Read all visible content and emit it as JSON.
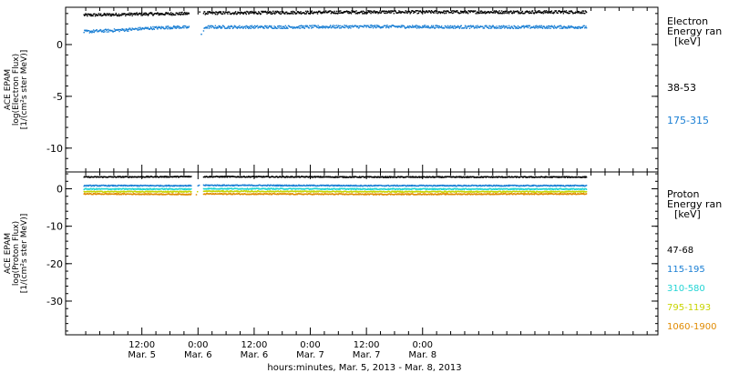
{
  "chart_data": [
    {
      "type": "scatter",
      "panel": "electron",
      "ylabel_lines": [
        "ACE EPAM",
        "log(Electron Flux)",
        "[1/(cm²s ster MeV)]"
      ],
      "legend_title_lines": [
        "Electron",
        "Energy ran",
        "[keV]"
      ],
      "legend_placement": "right",
      "ylim": [
        -12.3,
        3.6
      ],
      "yticks": [
        0,
        -5,
        -10
      ],
      "gap_hours": [
        70.0,
        73.0
      ],
      "series": [
        {
          "name": "38-53",
          "color": "#000000",
          "points": [
            [
              47.5,
              2.9
            ],
            [
              60,
              3.0
            ],
            [
              70,
              3.05
            ],
            [
              73.5,
              3.1
            ],
            [
              90,
              3.15
            ],
            [
              110,
              3.2
            ],
            [
              140,
              3.2
            ],
            [
              155,
              3.2
            ]
          ]
        },
        {
          "name": "175-315",
          "color": "#1a7fd4",
          "points": [
            [
              47.5,
              1.3
            ],
            [
              55,
              1.45
            ],
            [
              62,
              1.65
            ],
            [
              68,
              1.75
            ],
            [
              70.0,
              1.7
            ],
            [
              71.0,
              0.7
            ],
            [
              71.5,
              0.2
            ],
            [
              73.5,
              1.75
            ],
            [
              90,
              1.75
            ],
            [
              110,
              1.8
            ],
            [
              130,
              1.75
            ],
            [
              155,
              1.75
            ]
          ]
        }
      ]
    },
    {
      "type": "scatter",
      "panel": "proton",
      "ylabel_lines": [
        "ACE EPAM",
        "log(Proton Flux)",
        "[1/(cm²s ster MeV)]"
      ],
      "legend_title_lines": [
        "Proton",
        "Energy ran",
        "[keV]"
      ],
      "legend_placement": "right",
      "ylim": [
        -39,
        4.5
      ],
      "yticks": [
        0,
        -10,
        -20,
        -30
      ],
      "gap_hours": [
        70.5,
        73.0
      ],
      "series": [
        {
          "name": "47-68",
          "color": "#000000",
          "points": [
            [
              47.5,
              3.3
            ],
            [
              70,
              3.4
            ],
            [
              73.5,
              3.4
            ],
            [
              110,
              3.3
            ],
            [
              155,
              3.3
            ]
          ]
        },
        {
          "name": "115-195",
          "color": "#1a7fd4",
          "points": [
            [
              47.5,
              1.0
            ],
            [
              70,
              1.0
            ],
            [
              73.5,
              1.1
            ],
            [
              110,
              1.0
            ],
            [
              155,
              1.0
            ]
          ]
        },
        {
          "name": "310-580",
          "color": "#22d4d4",
          "points": [
            [
              47.5,
              0.1
            ],
            [
              70,
              0.1
            ],
            [
              73.5,
              0.2
            ],
            [
              110,
              0.1
            ],
            [
              155,
              0.1
            ]
          ]
        },
        {
          "name": "795-1193",
          "color": "#c8d400",
          "points": [
            [
              47.5,
              -0.6
            ],
            [
              70,
              -0.6
            ],
            [
              73.5,
              -0.5
            ],
            [
              110,
              -0.6
            ],
            [
              155,
              -0.6
            ]
          ]
        },
        {
          "name": "1060-1900",
          "color": "#e08a00",
          "points": [
            [
              47.5,
              -1.2
            ],
            [
              70,
              -1.3
            ],
            [
              73.5,
              -1.2
            ],
            [
              110,
              -1.3
            ],
            [
              155,
              -1.2
            ]
          ]
        }
      ]
    }
  ],
  "x_axis": {
    "xlim_hours": [
      43.7,
      170.3
    ],
    "title": "hours:minutes, Mar.  5, 2013 - Mar.  8, 2013",
    "ticks": [
      {
        "hours": 60,
        "time": "12:00",
        "date": "Mar. 5"
      },
      {
        "hours": 72,
        "time": "0:00",
        "date": "Mar. 6"
      },
      {
        "hours": 84,
        "time": "12:00",
        "date": "Mar. 6"
      },
      {
        "hours": 96,
        "time": "0:00",
        "date": "Mar. 7"
      },
      {
        "hours": 108,
        "time": "12:00",
        "date": "Mar. 7"
      },
      {
        "hours": 120,
        "time": "0:00",
        "date": "Mar. 8"
      }
    ]
  }
}
